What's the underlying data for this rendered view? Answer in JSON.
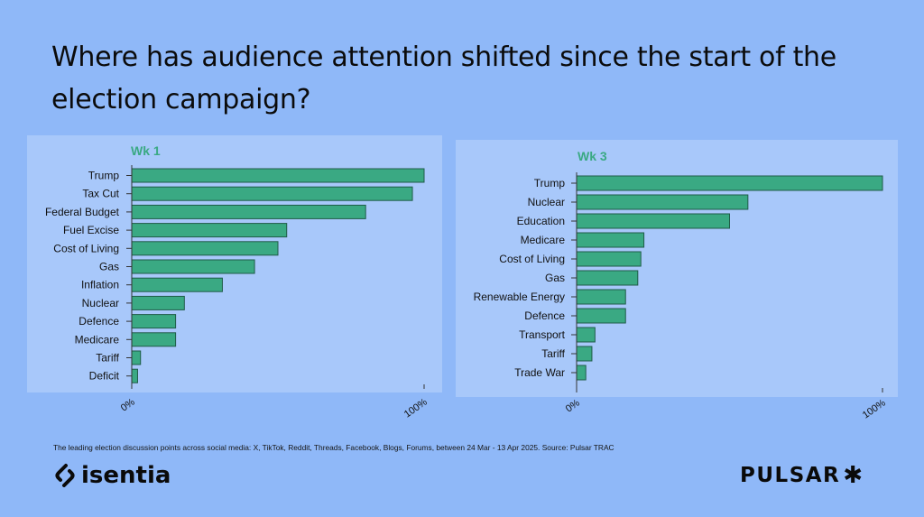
{
  "title": "Where has audience attention shifted since the start of the election campaign?",
  "footnote": "The leading election discussion points across social media:   X, TikTok, Reddit, Threads, Facebook, Blogs, Forums, between 24 Mar - 13 Apr 2025. Source: Pulsar TRAC",
  "logos": {
    "left": "isentia",
    "right": "PULSAR",
    "right_mark": "✱"
  },
  "colors": {
    "background": "#8fb8f8",
    "panel": "#d6e6ff",
    "bar": "#3aa983",
    "bar_edge": "#1f5c48",
    "heading": "#3aa983"
  },
  "chart_data": [
    {
      "type": "bar",
      "orientation": "horizontal",
      "title": "Wk 1",
      "categories": [
        "Trump",
        "Tax Cut",
        "Federal Budget",
        "Fuel Excise",
        "Cost of Living",
        "Gas",
        "Inflation",
        "Nuclear",
        "Defence",
        "Medicare",
        "Tariff",
        "Deficit"
      ],
      "values": [
        100,
        96,
        80,
        53,
        50,
        42,
        31,
        18,
        15,
        15,
        3,
        2
      ],
      "xlim": [
        0,
        100
      ],
      "x_ticks": [
        "0%",
        "100%"
      ]
    },
    {
      "type": "bar",
      "orientation": "horizontal",
      "title": "Wk 3",
      "categories": [
        "Trump",
        "Nuclear",
        "Education",
        "Medicare",
        "Cost of Living",
        "Gas",
        "Renewable Energy",
        "Defence",
        "Transport",
        "Tariff",
        "Trade War"
      ],
      "values": [
        100,
        56,
        50,
        22,
        21,
        20,
        16,
        16,
        6,
        5,
        3
      ],
      "xlim": [
        0,
        100
      ],
      "x_ticks": [
        "0%",
        "100%"
      ]
    }
  ]
}
